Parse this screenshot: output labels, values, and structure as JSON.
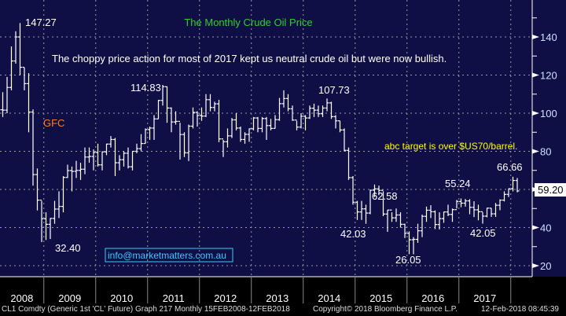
{
  "chart_data": {
    "type": "ohlc",
    "title": "The Monthly Crude Oil Price",
    "subtitle": "The choppy price action for most of 2017 kept us neutral crude oil but were now bullish.",
    "frequency": "Monthly",
    "start": "2008-02",
    "ylim": [
      14,
      159
    ],
    "yticks": [
      20,
      40,
      60,
      80,
      100,
      120,
      140
    ],
    "xticks": [
      "2008",
      "2009",
      "2010",
      "2011",
      "2012",
      "2013",
      "2014",
      "2015",
      "2016",
      "2017"
    ],
    "grid": true,
    "last_price": "59.20",
    "close": [
      101.8,
      101.6,
      113.5,
      127.4,
      140.0,
      124.1,
      115.5,
      100.6,
      67.8,
      54.4,
      44.6,
      41.7,
      44.8,
      49.7,
      51.1,
      66.3,
      69.9,
      69.5,
      70.0,
      70.6,
      77.0,
      77.3,
      79.4,
      72.9,
      79.7,
      83.8,
      86.2,
      74.0,
      75.6,
      79.0,
      71.9,
      80.0,
      81.4,
      84.1,
      91.4,
      92.2,
      97.0,
      106.7,
      113.9,
      102.7,
      95.4,
      95.7,
      88.8,
      79.2,
      93.2,
      100.4,
      98.8,
      98.5,
      107.1,
      103.0,
      104.9,
      86.5,
      85.0,
      88.1,
      96.5,
      92.2,
      86.2,
      88.9,
      91.8,
      97.5,
      92.0,
      97.2,
      93.5,
      92.0,
      96.6,
      105.0,
      107.7,
      102.3,
      96.4,
      92.7,
      98.4,
      97.5,
      102.6,
      101.6,
      99.7,
      102.7,
      105.4,
      98.2,
      96.0,
      91.2,
      80.5,
      66.2,
      53.3,
      48.2,
      49.8,
      47.6,
      59.6,
      60.3,
      59.5,
      47.1,
      49.2,
      45.1,
      46.6,
      41.7,
      37.0,
      33.6,
      33.8,
      38.3,
      45.9,
      49.1,
      48.3,
      41.6,
      44.7,
      48.2,
      46.9,
      49.4,
      53.7,
      52.8,
      54.0,
      50.6,
      49.3,
      48.3,
      46.0,
      50.2,
      47.2,
      51.7,
      54.4,
      57.4,
      60.4,
      64.7,
      59.2
    ],
    "high": [
      103,
      111,
      119,
      135,
      143,
      147.27,
      124,
      121,
      102,
      71,
      54,
      48,
      45,
      54,
      59,
      67,
      73,
      72,
      75,
      74,
      82,
      82,
      81,
      84,
      80,
      84,
      88,
      87,
      78,
      80,
      82,
      80,
      84,
      89,
      92,
      93,
      99,
      107,
      114.83,
      114,
      103,
      101,
      95,
      90,
      94,
      103,
      101,
      103,
      110,
      110,
      106,
      107,
      86,
      92,
      97.5,
      100,
      93,
      90,
      92,
      98,
      98,
      98,
      98,
      97,
      99,
      108,
      112,
      110,
      104,
      96,
      100,
      99,
      104,
      105,
      104,
      104,
      107.73,
      106,
      99,
      96,
      92,
      82,
      67,
      54,
      54,
      52,
      59.9,
      62.58,
      62,
      59,
      49.3,
      48,
      50,
      48,
      42,
      38,
      35,
      42,
      46.8,
      51,
      51.7,
      49,
      48,
      48.3,
      52,
      50,
      54.5,
      55.24,
      55,
      54.9,
      53.8,
      52,
      48,
      50.4,
      50.2,
      52.9,
      54.8,
      59,
      60.5,
      66.66,
      66
    ],
    "low": [
      86,
      98,
      100,
      112,
      126,
      120,
      112,
      90,
      62,
      49,
      32.4,
      33.5,
      34,
      42,
      45,
      48,
      66,
      59,
      66,
      65,
      68,
      74,
      70,
      72,
      70,
      78,
      82,
      67,
      70,
      72,
      71,
      70,
      79,
      80,
      84,
      86,
      86,
      97,
      104,
      95,
      90,
      94,
      75.7,
      77,
      74.9,
      92,
      93,
      96,
      98,
      101,
      101,
      84.8,
      77,
      82,
      87,
      91,
      85,
      84,
      85,
      91,
      90,
      90,
      86,
      91,
      92,
      96,
      103,
      101,
      96,
      91,
      92,
      91,
      97,
      98,
      98,
      98,
      101,
      97,
      92,
      90,
      80,
      65,
      52,
      44,
      44,
      42,
      47,
      56,
      57,
      46,
      37.75,
      43,
      43,
      40,
      34.5,
      26.05,
      26,
      32,
      35,
      43,
      45,
      39.2,
      39,
      42.5,
      46,
      43,
      50,
      50.7,
      51,
      47,
      45.5,
      43.8,
      42.05,
      45.4,
      45.6,
      45.6,
      49.1,
      53.7,
      56,
      59,
      58.5
    ],
    "annotations": {
      "peak_2008": "147.27",
      "low_2009": "32.40",
      "peak_2011": "114.83",
      "peak_2014": "107.73",
      "low_2015": "42.03",
      "peak_2015": "62.58",
      "low_2016": "26.05",
      "peak_2017": "55.24",
      "low_2017": "42.05",
      "peak_2018": "66.66",
      "gfc": "GFC",
      "target": "abc target is over $US70/barrel.",
      "email": "info@marketmatters.com.au"
    }
  },
  "colors": {
    "background": "#0f0f45",
    "bars": "#ffffff",
    "title": "#33cc33",
    "gfc": "#ff7f1f",
    "target": "#ffff00",
    "email": "#33ccff"
  },
  "footer": {
    "left": "CL1 Comdty (Generic 1st 'CL' Future) Graph 217  Monthly 15FEB2008-12FEB2018",
    "center": "Copyright© 2018 Bloomberg Finance L.P.",
    "right": "12-Feb-2018 08:45:39"
  }
}
